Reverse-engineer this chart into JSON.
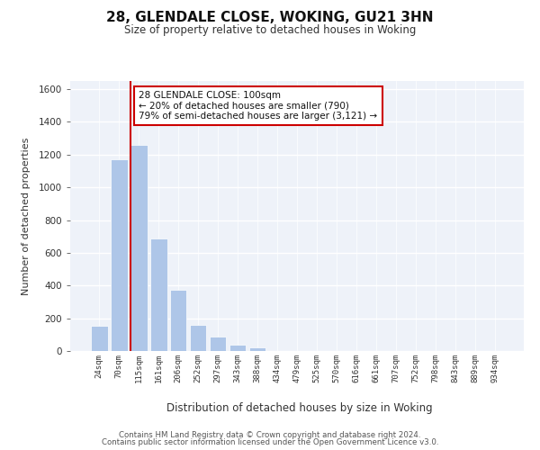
{
  "title": "28, GLENDALE CLOSE, WOKING, GU21 3HN",
  "subtitle": "Size of property relative to detached houses in Woking",
  "xlabel": "Distribution of detached houses by size in Woking",
  "ylabel": "Number of detached properties",
  "categories": [
    "24sqm",
    "70sqm",
    "115sqm",
    "161sqm",
    "206sqm",
    "252sqm",
    "297sqm",
    "343sqm",
    "388sqm",
    "434sqm",
    "479sqm",
    "525sqm",
    "570sqm",
    "616sqm",
    "661sqm",
    "707sqm",
    "752sqm",
    "798sqm",
    "843sqm",
    "889sqm",
    "934sqm"
  ],
  "values": [
    155,
    1170,
    1260,
    685,
    375,
    160,
    90,
    37,
    22,
    0,
    0,
    0,
    0,
    0,
    0,
    0,
    0,
    0,
    0,
    0,
    0
  ],
  "bar_color": "#aec6e8",
  "vline_color": "#cc0000",
  "vline_x_index": 2,
  "annotation_line1": "28 GLENDALE CLOSE: 100sqm",
  "annotation_line2": "← 20% of detached houses are smaller (790)",
  "annotation_line3": "79% of semi-detached houses are larger (3,121) →",
  "annotation_box_color": "#ffffff",
  "annotation_edge_color": "#cc0000",
  "ylim": [
    0,
    1650
  ],
  "yticks": [
    0,
    200,
    400,
    600,
    800,
    1000,
    1200,
    1400,
    1600
  ],
  "bg_color": "#eef2f9",
  "footer1": "Contains HM Land Registry data © Crown copyright and database right 2024.",
  "footer2": "Contains public sector information licensed under the Open Government Licence v3.0."
}
